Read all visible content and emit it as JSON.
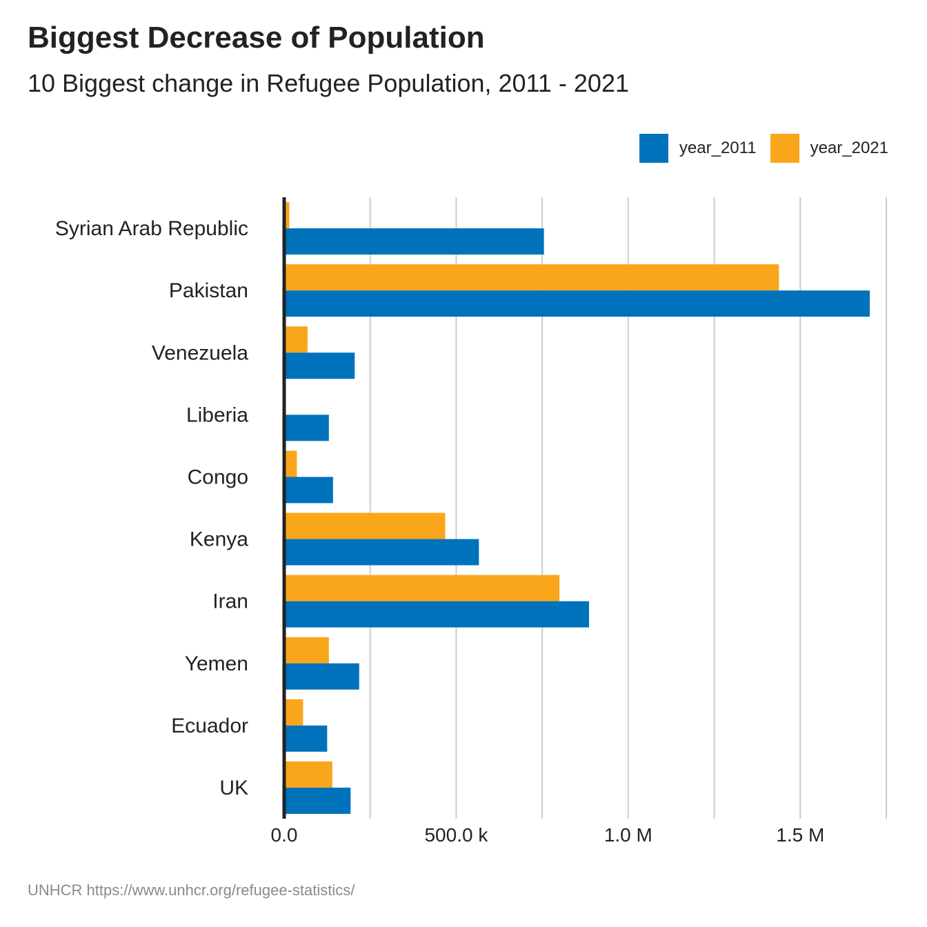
{
  "chart_data": {
    "type": "bar",
    "orientation": "horizontal",
    "title": "Biggest Decrease of Population",
    "subtitle": "10 Biggest change in Refugee Population, 2011 - 2021",
    "caption": "UNHCR https://www.unhcr.org/refugee-statistics/",
    "categories": [
      "Syrian Arab Republic",
      "Pakistan",
      "Venezuela",
      "Liberia",
      "Congo",
      "Kenya",
      "Iran",
      "Yemen",
      "Ecuador",
      "UK"
    ],
    "series": [
      {
        "name": "year_2011",
        "color": "#0072BC",
        "values": [
          755000,
          1702000,
          205000,
          130000,
          142000,
          566000,
          886000,
          218000,
          125000,
          193000
        ]
      },
      {
        "name": "year_2021",
        "color": "#FAA61A",
        "values": [
          15000,
          1438000,
          68000,
          5000,
          37000,
          468000,
          800000,
          130000,
          55000,
          140000
        ]
      }
    ],
    "xlim": [
      0,
      1750000
    ],
    "xticks": [
      {
        "value": 0,
        "label": "0.0"
      },
      {
        "value": 500000,
        "label": "500.0 k"
      },
      {
        "value": 1000000,
        "label": "1.0 M"
      },
      {
        "value": 1500000,
        "label": "1.5 M"
      }
    ],
    "minor_gridlines": [
      250000,
      750000,
      1250000,
      1750000
    ],
    "grid": "vertical",
    "legend_position": "top-right"
  }
}
